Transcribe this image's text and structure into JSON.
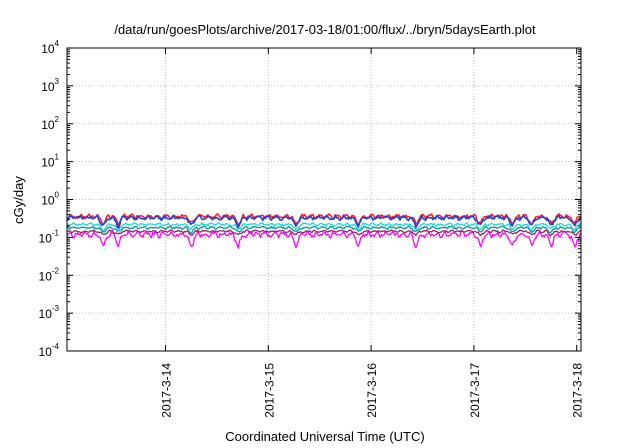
{
  "chart_data": {
    "type": "line",
    "title": "/data/run/goesPlots/archive/2017-03-18/01:00/flux/../bryn/5daysEarth.plot",
    "xlabel": "Coordinated Universal Time (UTC)",
    "ylabel": "cGy/day",
    "yscale": "log",
    "ylim": [
      0.0001,
      10000
    ],
    "xlim": [
      "2017-03-13 01:00",
      "2017-03-18 01:00"
    ],
    "x_ticks": [
      "2017-3-14",
      "2017-3-15",
      "2017-3-16",
      "2017-3-17",
      "2017-3-18"
    ],
    "y_ticks": [
      {
        "base": "10",
        "exp": "-4",
        "value": 0.0001
      },
      {
        "base": "10",
        "exp": "-3",
        "value": 0.001
      },
      {
        "base": "10",
        "exp": "-2",
        "value": 0.01
      },
      {
        "base": "10",
        "exp": "-1",
        "value": 0.1
      },
      {
        "base": "10",
        "exp": "0",
        "value": 1
      },
      {
        "base": "10",
        "exp": "1",
        "value": 10
      },
      {
        "base": "10",
        "exp": "2",
        "value": 100
      },
      {
        "base": "10",
        "exp": "3",
        "value": 1000
      },
      {
        "base": "10",
        "exp": "4",
        "value": 10000
      }
    ],
    "grid": true,
    "legend": "none",
    "series": [
      {
        "color": "#ff00ff",
        "base": 0.12,
        "variability": 0.25,
        "dip_depth": 0.55
      },
      {
        "color": "#a0206a",
        "base": 0.145,
        "variability": 0.1,
        "dip_depth": 0.2
      },
      {
        "color": "#00a0a0",
        "base": 0.18,
        "variability": 0.12,
        "dip_depth": 0.25
      },
      {
        "color": "#20d8d8",
        "base": 0.22,
        "variability": 0.12,
        "dip_depth": 0.28
      },
      {
        "color": "#ff2020",
        "base": 0.36,
        "variability": 0.18,
        "dip_depth": 0.4
      },
      {
        "color": "#2040e0",
        "base": 0.33,
        "variability": 0.18,
        "dip_depth": 0.4
      }
    ],
    "dip_times": [
      "2017-03-13 09:30",
      "2017-03-13 13:00",
      "2017-03-14 06:00",
      "2017-03-14 17:00",
      "2017-03-15 06:30",
      "2017-03-15 21:00",
      "2017-03-16 10:30",
      "2017-03-17 01:30",
      "2017-03-17 09:00",
      "2017-03-17 13:30",
      "2017-03-17 18:00",
      "2017-03-17 23:30"
    ]
  }
}
